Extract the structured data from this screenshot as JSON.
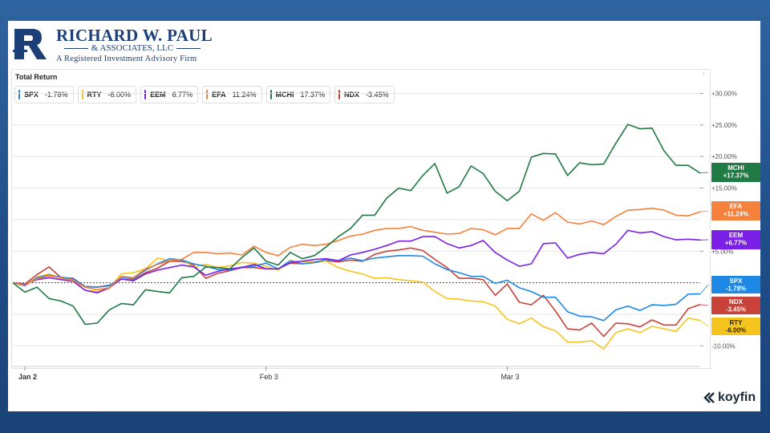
{
  "brand": {
    "name": "RICHARD W. PAUL",
    "sub": "& ASSOCIATES, LLC",
    "tagline": "A Registered Investment Advisory Firm"
  },
  "chart_data": {
    "type": "line",
    "title": "Total Return",
    "x_ticks": [
      "Jan 2",
      "Feb 3",
      "Mar 3"
    ],
    "y_ticks": [
      "+30.00%",
      "+25.00%",
      "+20.00%",
      "+15.00%",
      "+5.00%",
      "-10.00%"
    ],
    "ylim": [
      -13,
      31
    ],
    "grid": "horizontal",
    "legend_position": "top-left",
    "series": [
      {
        "name": "SPX",
        "label": "-1.78%",
        "tag": "SPX",
        "tag_value": "-1.78%",
        "color": "#1e88e5",
        "values": [
          0,
          -0.5,
          0.8,
          1.2,
          0.9,
          0.6,
          -0.6,
          -0.7,
          -0.5,
          0.9,
          0.6,
          2.0,
          3.0,
          3.8,
          3.6,
          3.0,
          2.6,
          2.1,
          2.0,
          2.5,
          2.6,
          3.1,
          2.2,
          3.5,
          3.0,
          3.2,
          3.7,
          3.5,
          3.9,
          3.5,
          3.9,
          4.1,
          4.3,
          4.3,
          4.2,
          3.0,
          2.1,
          1.6,
          1.0,
          1.0,
          -0.1,
          0.4,
          -0.8,
          -1.4,
          -2.3,
          -2.3,
          -4.6,
          -5.3,
          -5.4,
          -6.0,
          -4.3,
          -3.7,
          -4.4,
          -3.5,
          -3.6,
          -3.4,
          -1.8,
          -1.78
        ]
      },
      {
        "name": "RTY",
        "label": "-6.00%",
        "tag": "RTY",
        "tag_value": "-6.00%",
        "color": "#f5c41d",
        "values": [
          0,
          -0.4,
          0.9,
          1.4,
          0.7,
          0.4,
          -1.2,
          -1.4,
          -0.9,
          1.4,
          1.6,
          2.2,
          3.9,
          3.5,
          3.7,
          2.5,
          2.9,
          2.4,
          2.7,
          3.2,
          3.1,
          2.6,
          2.0,
          3.5,
          3.3,
          3.4,
          3.4,
          2.4,
          1.8,
          1.4,
          0.7,
          0.8,
          0.5,
          0.3,
          0.1,
          -1.4,
          -2.5,
          -2.6,
          -2.9,
          -3.0,
          -3.7,
          -5.8,
          -6.5,
          -5.6,
          -7.0,
          -7.6,
          -9.4,
          -9.4,
          -9.2,
          -10.5,
          -7.9,
          -7.3,
          -7.9,
          -6.9,
          -7.3,
          -7.7,
          -5.6,
          -6.0
        ]
      },
      {
        "name": "EEM",
        "label": "6.77%",
        "tag": "EEM",
        "tag_value": "+6.77%",
        "color": "#7a1fe6",
        "values": [
          0,
          -0.3,
          0.5,
          0.8,
          0.5,
          0.2,
          -1.2,
          -1.6,
          -0.8,
          0.6,
          0.3,
          1.4,
          2.0,
          2.4,
          2.8,
          2.5,
          1.2,
          1.8,
          2.2,
          2.4,
          2.9,
          2.2,
          2.2,
          3.2,
          3.4,
          3.7,
          3.8,
          3.5,
          4.4,
          4.8,
          5.3,
          5.9,
          6.6,
          6.6,
          7.3,
          7.3,
          6.2,
          5.5,
          5.9,
          6.7,
          4.8,
          3.6,
          2.6,
          3.0,
          6.2,
          6.3,
          3.9,
          4.5,
          4.8,
          4.6,
          6.1,
          8.3,
          7.9,
          8.1,
          7.3,
          6.8,
          6.9,
          6.77
        ]
      },
      {
        "name": "EFA",
        "label": "11.24%",
        "tag": "EFA",
        "tag_value": "+11.24%",
        "color": "#f5813c",
        "values": [
          0,
          -0.4,
          0.6,
          1.1,
          0.8,
          0.3,
          -0.7,
          -1.1,
          -0.8,
          1.0,
          0.8,
          2.2,
          2.9,
          3.5,
          3.7,
          4.8,
          4.8,
          4.6,
          4.7,
          4.4,
          5.8,
          4.8,
          4.3,
          5.6,
          6.1,
          5.9,
          6.1,
          6.7,
          7.4,
          7.7,
          8.3,
          8.6,
          8.6,
          8.9,
          8.3,
          8.0,
          7.7,
          7.8,
          8.6,
          8.4,
          7.6,
          8.6,
          8.6,
          10.9,
          9.9,
          11.1,
          9.6,
          9.3,
          9.8,
          9.2,
          10.5,
          11.5,
          11.6,
          11.8,
          11.5,
          10.7,
          10.6,
          11.24
        ]
      },
      {
        "name": "MCHI",
        "label": "17.37%",
        "tag": "MCHI",
        "tag_value": "+17.37%",
        "color": "#1f7a43",
        "values": [
          0,
          -1.5,
          -0.7,
          -2.5,
          -2.9,
          -3.7,
          -6.6,
          -6.4,
          -4.3,
          -3.3,
          -3.5,
          -1.1,
          -1.4,
          -1.6,
          0.8,
          1.0,
          2.5,
          2.4,
          2.2,
          4.0,
          5.5,
          3.4,
          2.8,
          4.8,
          3.8,
          4.3,
          5.7,
          7.3,
          8.6,
          10.7,
          10.7,
          13.4,
          15.0,
          14.6,
          17.0,
          18.9,
          14.2,
          15.2,
          18.5,
          17.3,
          14.5,
          13.0,
          14.5,
          19.9,
          20.5,
          20.4,
          17.0,
          19.0,
          18.7,
          18.8,
          22.1,
          25.1,
          24.4,
          24.5,
          20.9,
          18.6,
          18.6,
          17.37
        ]
      },
      {
        "name": "NDX",
        "label": "-3.45%",
        "tag": "NDX",
        "tag_value": "-3.45%",
        "color": "#c8423a",
        "values": [
          0,
          -0.2,
          1.3,
          2.5,
          0.8,
          0.7,
          -0.6,
          -0.7,
          -0.4,
          0.6,
          0.4,
          1.6,
          2.3,
          3.4,
          3.4,
          2.8,
          0.7,
          1.5,
          1.9,
          2.4,
          2.4,
          2.2,
          2.2,
          3.1,
          3.0,
          3.2,
          3.5,
          3.3,
          3.6,
          3.4,
          4.5,
          5.0,
          5.2,
          5.5,
          5.1,
          3.7,
          2.4,
          0.7,
          0.7,
          0.5,
          -2.0,
          -0.2,
          -3.1,
          -3.5,
          -2.0,
          -4.5,
          -7.3,
          -7.5,
          -6.4,
          -8.5,
          -6.4,
          -6.5,
          -7.0,
          -5.9,
          -6.7,
          -6.7,
          -4.1,
          -3.45
        ]
      }
    ]
  }
}
